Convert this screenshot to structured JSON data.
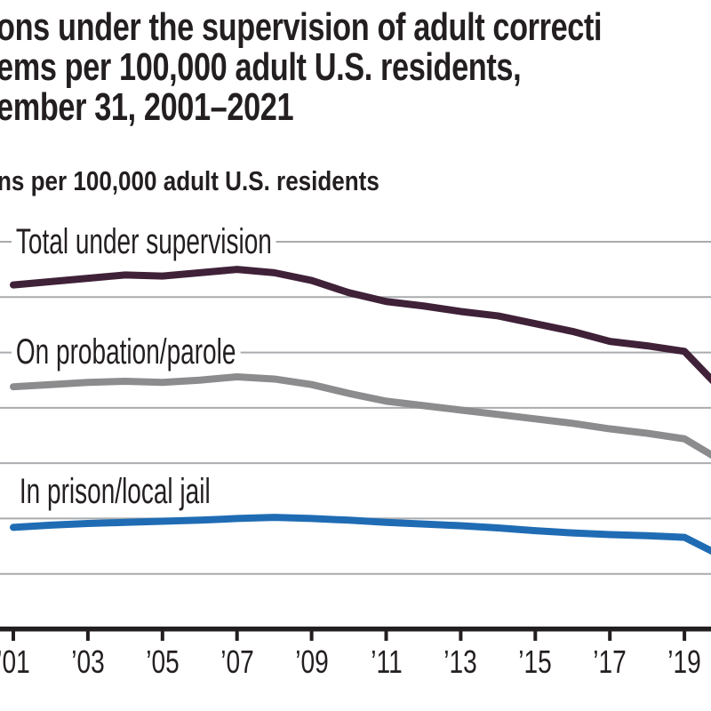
{
  "chart_data": {
    "type": "line",
    "title_lines": [
      "ons under the supervision of adult correcti",
      "ems per 100,000 adult U.S. residents,",
      "ember 31, 2001–2021"
    ],
    "ylabel": "ns per 100,000 adult U.S. residents",
    "x": [
      2001,
      2002,
      2003,
      2004,
      2005,
      2006,
      2007,
      2008,
      2009,
      2010,
      2011,
      2012,
      2013,
      2014,
      2015,
      2016,
      2017,
      2018,
      2019,
      2020
    ],
    "series": [
      {
        "name": "Total under supervision",
        "color": "#3f2138",
        "values": [
          3110,
          3140,
          3170,
          3200,
          3190,
          3220,
          3250,
          3220,
          3150,
          3040,
          2960,
          2920,
          2870,
          2830,
          2760,
          2690,
          2600,
          2560,
          2510,
          2160
        ]
      },
      {
        "name": "On probation/parole",
        "color": "#8c8c8e",
        "values": [
          2190,
          2210,
          2230,
          2240,
          2230,
          2250,
          2280,
          2260,
          2210,
          2130,
          2060,
          2020,
          1980,
          1940,
          1900,
          1860,
          1810,
          1770,
          1720,
          1520
        ]
      },
      {
        "name": "In prison/local jail",
        "color": "#1f6cb4",
        "values": [
          920,
          940,
          955,
          965,
          975,
          985,
          1000,
          1010,
          1000,
          985,
          965,
          950,
          935,
          915,
          890,
          870,
          855,
          845,
          830,
          660
        ]
      }
    ],
    "x_tick_years": [
      2001,
      2003,
      2005,
      2007,
      2009,
      2011,
      2013,
      2015,
      2017,
      2019
    ],
    "x_tick_labels": [
      "’01",
      "’03",
      "’05",
      "’07",
      "’09",
      "’11",
      "’13",
      "’15",
      "’17",
      "’19"
    ],
    "ylim": [
      0,
      3500
    ],
    "gridline_values": [
      3500,
      3000,
      2500,
      2000,
      1500,
      1000,
      500
    ],
    "grid": "horizontal",
    "legend": "inline labels on plot; image cropped at left, right edge cuts series after 2019"
  },
  "colors": {
    "text": "#231f20",
    "gridline": "#a9abae",
    "axis": "#231f20",
    "background": "#ffffff"
  }
}
